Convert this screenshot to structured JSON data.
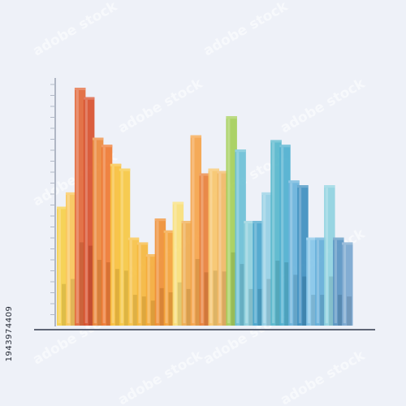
{
  "chart_data": {
    "type": "bar",
    "title": "",
    "xlabel": "",
    "ylabel": "",
    "grid": false,
    "legend": "none",
    "ylim": [
      0,
      100
    ],
    "bars": [
      {
        "value": 50,
        "color": "#f6d04a"
      },
      {
        "value": 56,
        "color": "#f9c65a"
      },
      {
        "value": 100,
        "color": "#e2683a"
      },
      {
        "value": 96,
        "color": "#d8512e"
      },
      {
        "value": 79,
        "color": "#ec8a3c"
      },
      {
        "value": 76,
        "color": "#ef7a32"
      },
      {
        "value": 68,
        "color": "#f8c03c"
      },
      {
        "value": 66,
        "color": "#f6c843"
      },
      {
        "value": 37,
        "color": "#f7c246"
      },
      {
        "value": 35,
        "color": "#f5b73e"
      },
      {
        "value": 30,
        "color": "#f4ab3b"
      },
      {
        "value": 45,
        "color": "#ef8f35"
      },
      {
        "value": 40,
        "color": "#f4a238"
      },
      {
        "value": 52,
        "color": "#f8df7a"
      },
      {
        "value": 44,
        "color": "#efab4e"
      },
      {
        "value": 80,
        "color": "#f5a44a"
      },
      {
        "value": 64,
        "color": "#e8803a"
      },
      {
        "value": 66,
        "color": "#f7c66b"
      },
      {
        "value": 65,
        "color": "#f1b866"
      },
      {
        "value": 88,
        "color": "#a5cf5a"
      },
      {
        "value": 74,
        "color": "#6cc0d6"
      },
      {
        "value": 44,
        "color": "#8ecfdc"
      },
      {
        "value": 44,
        "color": "#4aa5cc"
      },
      {
        "value": 56,
        "color": "#95cfe4"
      },
      {
        "value": 78,
        "color": "#57b7cc"
      },
      {
        "value": 76,
        "color": "#4fb0cf"
      },
      {
        "value": 61,
        "color": "#6ab3db"
      },
      {
        "value": 59,
        "color": "#3f8fbf"
      },
      {
        "value": 37,
        "color": "#86c6e8"
      },
      {
        "value": 37,
        "color": "#64aed8"
      },
      {
        "value": 59,
        "color": "#8fd3e0"
      },
      {
        "value": 37,
        "color": "#5a95c2"
      },
      {
        "value": 35,
        "color": "#7aa7cf"
      }
    ]
  },
  "watermark": {
    "side_id": "1943974409",
    "tile_text": "adobe stock"
  }
}
